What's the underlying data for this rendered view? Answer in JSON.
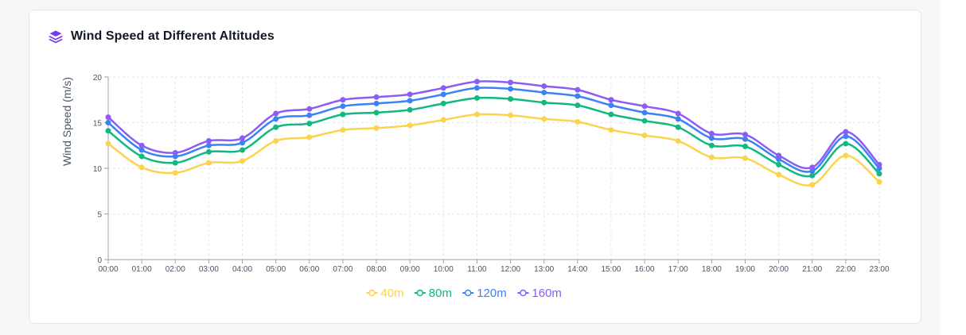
{
  "card": {
    "title": "Wind Speed at Different Altitudes"
  },
  "chart_data": {
    "type": "line",
    "title": "Wind Speed at Different Altitudes",
    "xlabel": "",
    "ylabel": "Wind Speed (m/s)",
    "ylim": [
      0,
      20
    ],
    "yticks": [
      0,
      5,
      10,
      15,
      20
    ],
    "grid": true,
    "legend_position": "bottom-center",
    "categories": [
      "00:00",
      "01:00",
      "02:00",
      "03:00",
      "04:00",
      "05:00",
      "06:00",
      "07:00",
      "08:00",
      "09:00",
      "10:00",
      "11:00",
      "12:00",
      "13:00",
      "14:00",
      "15:00",
      "16:00",
      "17:00",
      "18:00",
      "19:00",
      "20:00",
      "21:00",
      "22:00",
      "23:00"
    ],
    "series": [
      {
        "name": "40m",
        "color": "#fcd34d",
        "values": [
          12.7,
          10.1,
          9.5,
          10.6,
          10.8,
          13.0,
          13.4,
          14.2,
          14.4,
          14.7,
          15.3,
          15.9,
          15.8,
          15.4,
          15.1,
          14.2,
          13.6,
          13.0,
          11.2,
          11.1,
          9.3,
          8.2,
          11.4,
          8.5
        ]
      },
      {
        "name": "80m",
        "color": "#10b981",
        "values": [
          14.1,
          11.3,
          10.6,
          11.8,
          12.0,
          14.5,
          14.9,
          15.9,
          16.1,
          16.4,
          17.1,
          17.7,
          17.6,
          17.2,
          16.9,
          15.9,
          15.2,
          14.5,
          12.5,
          12.4,
          10.4,
          9.2,
          12.7,
          9.4
        ]
      },
      {
        "name": "120m",
        "color": "#3b82f6",
        "values": [
          15.0,
          12.0,
          11.3,
          12.5,
          12.8,
          15.4,
          15.8,
          16.8,
          17.1,
          17.4,
          18.1,
          18.8,
          18.7,
          18.3,
          17.9,
          16.9,
          16.1,
          15.4,
          13.3,
          13.2,
          11.0,
          9.7,
          13.5,
          10.0
        ]
      },
      {
        "name": "160m",
        "color": "#8b5cf6",
        "values": [
          15.6,
          12.5,
          11.7,
          13.0,
          13.3,
          16.0,
          16.5,
          17.5,
          17.8,
          18.1,
          18.8,
          19.5,
          19.4,
          19.0,
          18.6,
          17.5,
          16.8,
          16.0,
          13.8,
          13.7,
          11.4,
          10.1,
          14.0,
          10.4
        ]
      }
    ]
  },
  "icons": {
    "title_icon": "layers-icon",
    "accent": "#7c3aed"
  }
}
